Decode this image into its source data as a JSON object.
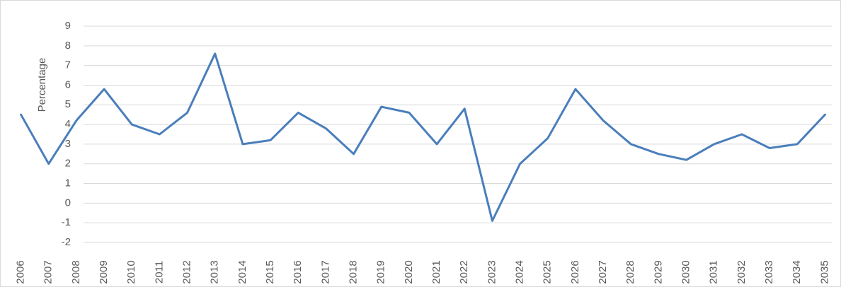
{
  "chart_data": {
    "type": "line",
    "y_label": "Percentage",
    "categories": [
      "2006",
      "2007",
      "2008",
      "2009",
      "2010",
      "2011",
      "2012",
      "2013",
      "2014",
      "2015",
      "2016",
      "2017",
      "2018",
      "2019",
      "2020",
      "2021",
      "2022",
      "2023",
      "2024",
      "2025",
      "2026",
      "2027",
      "2028",
      "2029",
      "2030",
      "2031",
      "2032",
      "2033",
      "2034",
      "2035"
    ],
    "series": [
      {
        "color": "#4a7ebb",
        "values": [
          4.5,
          2.0,
          4.2,
          5.8,
          4.0,
          3.5,
          4.6,
          7.6,
          3.0,
          3.2,
          4.6,
          3.8,
          2.5,
          4.9,
          4.6,
          3.0,
          4.8,
          -0.9,
          2.0,
          3.3,
          5.8,
          4.2,
          3.0,
          2.5,
          2.2,
          3.0,
          3.5,
          2.8,
          3.0,
          4.5
        ]
      }
    ],
    "ylim": [
      -2,
      9
    ],
    "yticks": [
      -2,
      -1,
      0,
      1,
      2,
      3,
      4,
      5,
      6,
      7,
      8,
      9
    ],
    "grid": true
  }
}
